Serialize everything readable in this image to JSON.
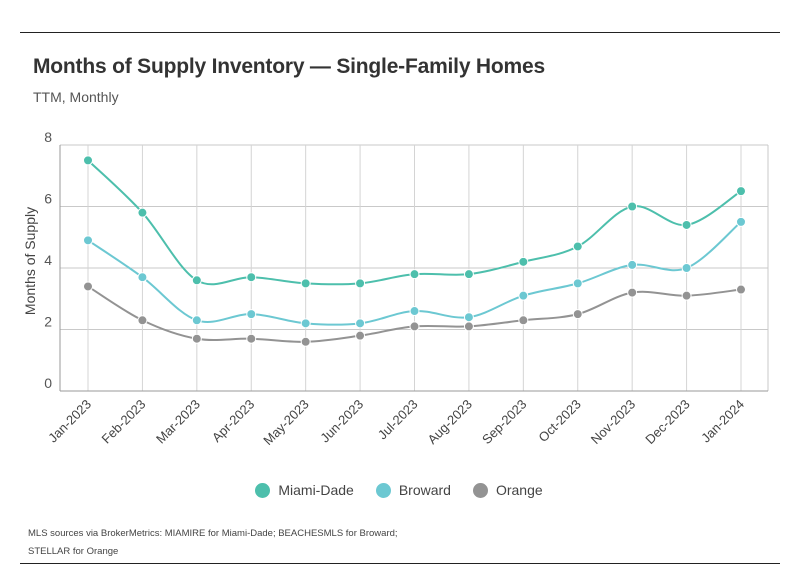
{
  "chart_data": {
    "type": "line",
    "title": "Months of Supply Inventory — Single-Family Homes",
    "subtitle": "TTM, Monthly",
    "xlabel": "",
    "ylabel": "Months of Supply",
    "ylim": [
      0,
      8
    ],
    "yticks": [
      0,
      2,
      4,
      6,
      8
    ],
    "grid": true,
    "legend_position": "bottom",
    "categories": [
      "Jan-2023",
      "Feb-2023",
      "Mar-2023",
      "Apr-2023",
      "May-2023",
      "Jun-2023",
      "Jul-2023",
      "Aug-2023",
      "Sep-2023",
      "Oct-2023",
      "Nov-2023",
      "Dec-2023",
      "Jan-2024"
    ],
    "series": [
      {
        "name": "Miami-Dade",
        "color": "#4dbfac",
        "values": [
          7.5,
          5.8,
          3.6,
          3.7,
          3.5,
          3.5,
          3.8,
          3.8,
          4.2,
          4.7,
          6.0,
          5.4,
          6.5
        ]
      },
      {
        "name": "Broward",
        "color": "#6cc8d2",
        "values": [
          4.9,
          3.7,
          2.3,
          2.5,
          2.2,
          2.2,
          2.6,
          2.4,
          3.1,
          3.5,
          4.1,
          4.0,
          5.5
        ]
      },
      {
        "name": "Orange",
        "color": "#939393",
        "values": [
          3.4,
          2.3,
          1.7,
          1.7,
          1.6,
          1.8,
          2.1,
          2.1,
          2.3,
          2.5,
          3.2,
          3.1,
          3.3
        ]
      }
    ]
  },
  "source": {
    "line1": "MLS sources via BrokerMetrics: MIAMIRE for Miami-Dade; BEACHESMLS for Broward;",
    "line2": "STELLAR for Orange"
  }
}
